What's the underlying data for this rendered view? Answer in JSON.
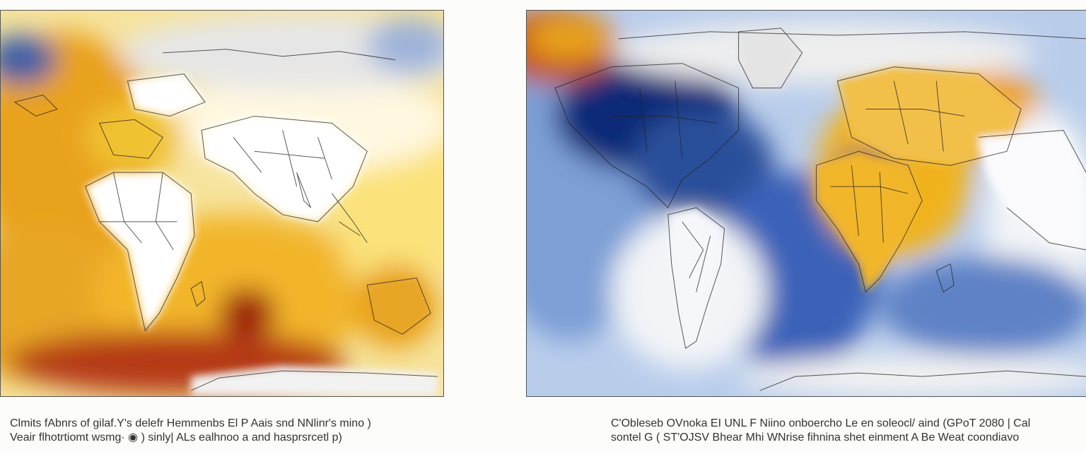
{
  "maps": [
    {
      "caption_lines": [
        "Clmits fAbnrs of gilaf.Y's delefr Hemmenbs El P Aais snd NNlinr's  mino )",
        "Veair flhotrtiomt wsmg· ◉ ) sinly| ALs ealhnoo a and hasprsrcetl p)"
      ],
      "colors": {
        "warm_strong": "#9c1c0e",
        "warm": "#e9a21f",
        "warm_light": "#fbe27a",
        "neutral": "#f4f4f2",
        "land": "#ffffff",
        "ice": "#dcdcdc",
        "cool": "#2b4f9a"
      }
    },
    {
      "caption_lines": [
        "C'Obleseb OVnoka EI UNL F Niino onboercho Le en soleocl/ aind  (GPoT 2080 | Cal",
        "sontel G ( ST'OJSV Bhear Mhi WNrise fihnina shet einment A Be Weat coondiavo"
      ],
      "colors": {
        "cool_strong": "#0f2a78",
        "cool": "#3a62b8",
        "cool_light": "#a9c1e6",
        "neutral": "#f2f4f7",
        "warm": "#f0b21c",
        "warm_strong": "#c4541a",
        "ice": "#d9d9d9"
      }
    }
  ]
}
